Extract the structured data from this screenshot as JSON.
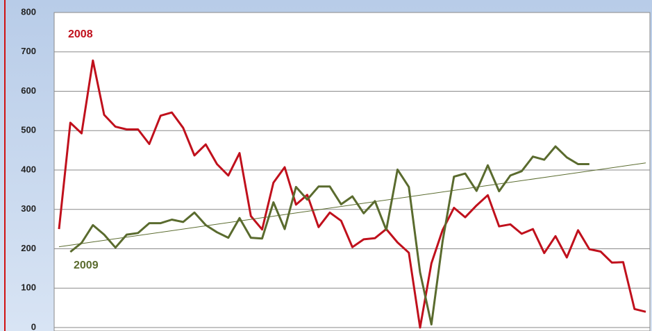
{
  "chart_data": {
    "type": "line",
    "categories": [
      null,
      null,
      null,
      null,
      null,
      null,
      null,
      null,
      null,
      null,
      null,
      null,
      null,
      null,
      null,
      null,
      null,
      null,
      null,
      null,
      null,
      null,
      null,
      null,
      null,
      null,
      null,
      null,
      null,
      null,
      null,
      null,
      null,
      null,
      null,
      null,
      null,
      null,
      null,
      null,
      null,
      null,
      null,
      null,
      null,
      null,
      null,
      null,
      null,
      null,
      null,
      null,
      null
    ],
    "series": [
      {
        "name": "2008",
        "color": "#c0101c",
        "values": [
          250,
          520,
          493,
          678,
          540,
          510,
          503,
          503,
          466,
          538,
          546,
          507,
          437,
          465,
          415,
          386,
          443,
          283,
          249,
          368,
          407,
          312,
          337,
          255,
          292,
          271,
          204,
          224,
          227,
          250,
          216,
          190,
          0,
          163,
          248,
          304,
          280,
          310,
          336,
          257,
          262,
          238,
          250,
          189,
          232,
          178,
          247,
          199,
          193,
          165,
          166,
          47,
          40
        ]
      },
      {
        "name": "2009",
        "color": "#5a6b2e",
        "values": [
          null,
          192,
          215,
          260,
          236,
          203,
          236,
          240,
          265,
          265,
          274,
          268,
          292,
          260,
          242,
          228,
          278,
          228,
          226,
          318,
          250,
          357,
          325,
          358,
          358,
          313,
          333,
          290,
          321,
          248,
          401,
          357,
          140,
          8,
          220,
          383,
          391,
          347,
          412,
          346,
          386,
          397,
          434,
          426,
          460,
          432,
          415,
          415,
          null,
          null,
          null,
          null,
          null
        ],
        "trendline": [
          205,
          418
        ],
        "trendline_color": "#5a6b2e"
      }
    ],
    "ylim": [
      0,
      800
    ],
    "yticks": [
      0,
      100,
      200,
      300,
      400,
      500,
      600,
      700,
      800
    ],
    "grid": true
  }
}
